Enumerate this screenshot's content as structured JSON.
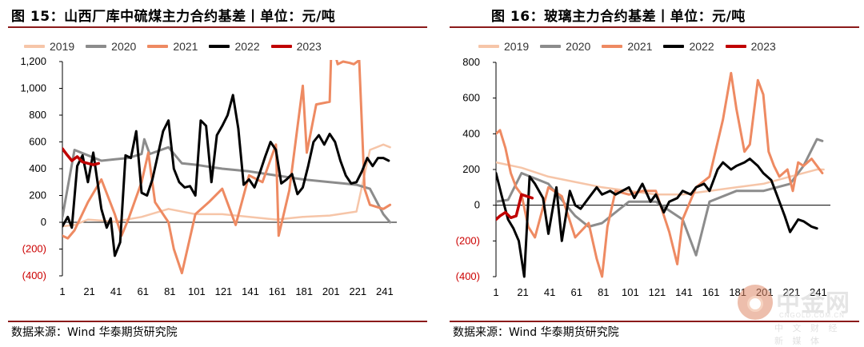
{
  "figures": [
    {
      "title": "图 15：山西厂库中硫煤主力合约基差丨单位：元/吨",
      "source": "数据来源：Wind 华泰期货研究院"
    },
    {
      "title": "图 16：玻璃主力合约基差丨单位：元/吨",
      "source": "数据来源：Wind 华泰期货研究院"
    }
  ],
  "watermark": {
    "name_cn": "中金网",
    "domain": "CNGOLD.COM.CN",
    "tagline": "中 文 财 经 新 媒 体"
  },
  "colors": {
    "2019": "#f6c5a8",
    "2020": "#8c8c8c",
    "2021": "#ee8a62",
    "2022": "#000000",
    "2023": "#c00000",
    "rule": "#8b1a1a",
    "negative_tick": "#cc0000"
  },
  "chart_data": [
    {
      "type": "line",
      "x_ticks": [
        "1",
        "21",
        "41",
        "61",
        "81",
        "101",
        "121",
        "141",
        "161",
        "181",
        "201",
        "221",
        "241"
      ],
      "y_ticks": [
        "1,200",
        "1,000",
        "800",
        "600",
        "400",
        "200",
        "0",
        "(200)",
        "(400)"
      ],
      "ylim": [
        -400,
        1200
      ],
      "xlim": [
        1,
        250
      ],
      "legend": [
        "2019",
        "2020",
        "2021",
        "2022",
        "2023"
      ],
      "series": [
        {
          "name": "2019",
          "x": [
            1,
            10,
            20,
            40,
            60,
            80,
            100,
            120,
            140,
            160,
            180,
            200,
            220,
            230,
            240,
            245
          ],
          "y": [
            -30,
            -20,
            20,
            5,
            40,
            100,
            60,
            60,
            40,
            20,
            40,
            50,
            80,
            540,
            580,
            560
          ]
        },
        {
          "name": "2020",
          "x": [
            1,
            10,
            20,
            30,
            40,
            50,
            60,
            62,
            66,
            80,
            90,
            100,
            120,
            140,
            160,
            180,
            200,
            210,
            220,
            230,
            240,
            245
          ],
          "y": [
            40,
            540,
            500,
            460,
            470,
            480,
            510,
            620,
            510,
            560,
            440,
            430,
            400,
            380,
            350,
            320,
            300,
            290,
            280,
            250,
            60,
            0
          ]
        },
        {
          "name": "2021",
          "x": [
            1,
            5,
            10,
            20,
            30,
            40,
            45,
            50,
            60,
            65,
            70,
            80,
            84,
            90,
            100,
            110,
            120,
            130,
            140,
            150,
            160,
            162,
            170,
            180,
            183,
            190,
            200,
            201,
            203,
            206,
            210,
            215,
            218,
            222,
            226,
            230,
            240,
            245
          ],
          "y": [
            -100,
            -120,
            -60,
            150,
            320,
            60,
            -100,
            20,
            300,
            520,
            150,
            0,
            -200,
            -380,
            60,
            150,
            250,
            -20,
            350,
            300,
            580,
            -100,
            240,
            1020,
            520,
            880,
            900,
            1210,
            1300,
            1180,
            1200,
            1190,
            1180,
            1210,
            250,
            130,
            100,
            130
          ]
        },
        {
          "name": "2022",
          "x": [
            1,
            5,
            8,
            12,
            16,
            20,
            24,
            30,
            34,
            37,
            40,
            44,
            48,
            52,
            56,
            60,
            64,
            68,
            72,
            76,
            80,
            84,
            88,
            92,
            96,
            100,
            104,
            108,
            112,
            116,
            120,
            124,
            128,
            132,
            136,
            140,
            144,
            148,
            152,
            156,
            160,
            164,
            168,
            172,
            176,
            180,
            184,
            188,
            192,
            196,
            200,
            204,
            208,
            212,
            216,
            220,
            224,
            228,
            232,
            236,
            240,
            244
          ],
          "y": [
            -30,
            40,
            -40,
            420,
            500,
            300,
            520,
            100,
            -40,
            30,
            -250,
            -150,
            500,
            480,
            680,
            220,
            200,
            320,
            500,
            680,
            760,
            400,
            300,
            260,
            270,
            200,
            760,
            720,
            300,
            650,
            720,
            800,
            950,
            700,
            280,
            320,
            260,
            370,
            490,
            600,
            540,
            290,
            320,
            360,
            210,
            260,
            420,
            600,
            650,
            580,
            660,
            600,
            460,
            350,
            290,
            300,
            380,
            480,
            420,
            480,
            480,
            460
          ]
        },
        {
          "name": "2023",
          "x": [
            1,
            4,
            8,
            12,
            16,
            20,
            24,
            28
          ],
          "y": [
            550,
            510,
            460,
            490,
            450,
            440,
            430,
            440
          ]
        }
      ]
    },
    {
      "type": "line",
      "x_ticks": [
        "1",
        "21",
        "41",
        "61",
        "81",
        "101",
        "121",
        "141",
        "161",
        "181",
        "201",
        "221",
        "241"
      ],
      "y_ticks": [
        "800",
        "600",
        "400",
        "200",
        "0",
        "(200)",
        "(400)"
      ],
      "ylim": [
        -400,
        800
      ],
      "xlim": [
        1,
        250
      ],
      "legend": [
        "2019",
        "2020",
        "2021",
        "2022",
        "2023"
      ],
      "series": [
        {
          "name": "2019",
          "x": [
            1,
            20,
            40,
            60,
            80,
            100,
            120,
            140,
            160,
            180,
            200,
            220,
            240,
            245
          ],
          "y": [
            240,
            210,
            160,
            130,
            100,
            80,
            60,
            60,
            80,
            100,
            120,
            160,
            200,
            200
          ]
        },
        {
          "name": "2020",
          "x": [
            1,
            10,
            20,
            40,
            60,
            70,
            80,
            100,
            120,
            140,
            150,
            160,
            180,
            200,
            220,
            230,
            240,
            244
          ],
          "y": [
            20,
            30,
            180,
            120,
            -60,
            -120,
            -100,
            20,
            20,
            -80,
            -280,
            20,
            80,
            80,
            120,
            220,
            370,
            360
          ]
        },
        {
          "name": "2021",
          "x": [
            1,
            4,
            8,
            12,
            16,
            20,
            25,
            30,
            40,
            50,
            60,
            70,
            76,
            80,
            84,
            90,
            100,
            110,
            120,
            130,
            136,
            140,
            150,
            160,
            170,
            176,
            180,
            186,
            190,
            196,
            200,
            204,
            208,
            212,
            218,
            222,
            226,
            230,
            236,
            240,
            244
          ],
          "y": [
            400,
            420,
            320,
            180,
            100,
            60,
            -120,
            -180,
            100,
            50,
            -180,
            -100,
            -300,
            -400,
            -120,
            80,
            60,
            80,
            80,
            -150,
            -330,
            -80,
            100,
            160,
            480,
            740,
            540,
            300,
            340,
            700,
            620,
            300,
            220,
            160,
            200,
            80,
            240,
            220,
            260,
            220,
            180
          ]
        },
        {
          "name": "2022",
          "x": [
            1,
            5,
            10,
            14,
            18,
            22,
            26,
            30,
            36,
            40,
            46,
            50,
            56,
            60,
            64,
            70,
            76,
            80,
            86,
            90,
            100,
            104,
            110,
            116,
            120,
            126,
            130,
            136,
            140,
            146,
            150,
            156,
            160,
            166,
            170,
            176,
            180,
            186,
            190,
            196,
            200,
            206,
            210,
            216,
            220,
            226,
            230,
            236,
            240
          ],
          "y": [
            180,
            60,
            -80,
            -130,
            -200,
            -400,
            160,
            120,
            40,
            -160,
            100,
            -200,
            80,
            0,
            -20,
            40,
            100,
            60,
            80,
            60,
            100,
            40,
            120,
            20,
            60,
            -40,
            20,
            40,
            80,
            60,
            100,
            120,
            80,
            200,
            240,
            200,
            220,
            240,
            260,
            220,
            180,
            140,
            60,
            -60,
            -150,
            -80,
            -90,
            -120,
            -130
          ]
        },
        {
          "name": "2023",
          "x": [
            1,
            4,
            8,
            12,
            16,
            20,
            24,
            28
          ],
          "y": [
            -80,
            -60,
            -40,
            -70,
            -60,
            60,
            50,
            40
          ]
        }
      ]
    }
  ]
}
